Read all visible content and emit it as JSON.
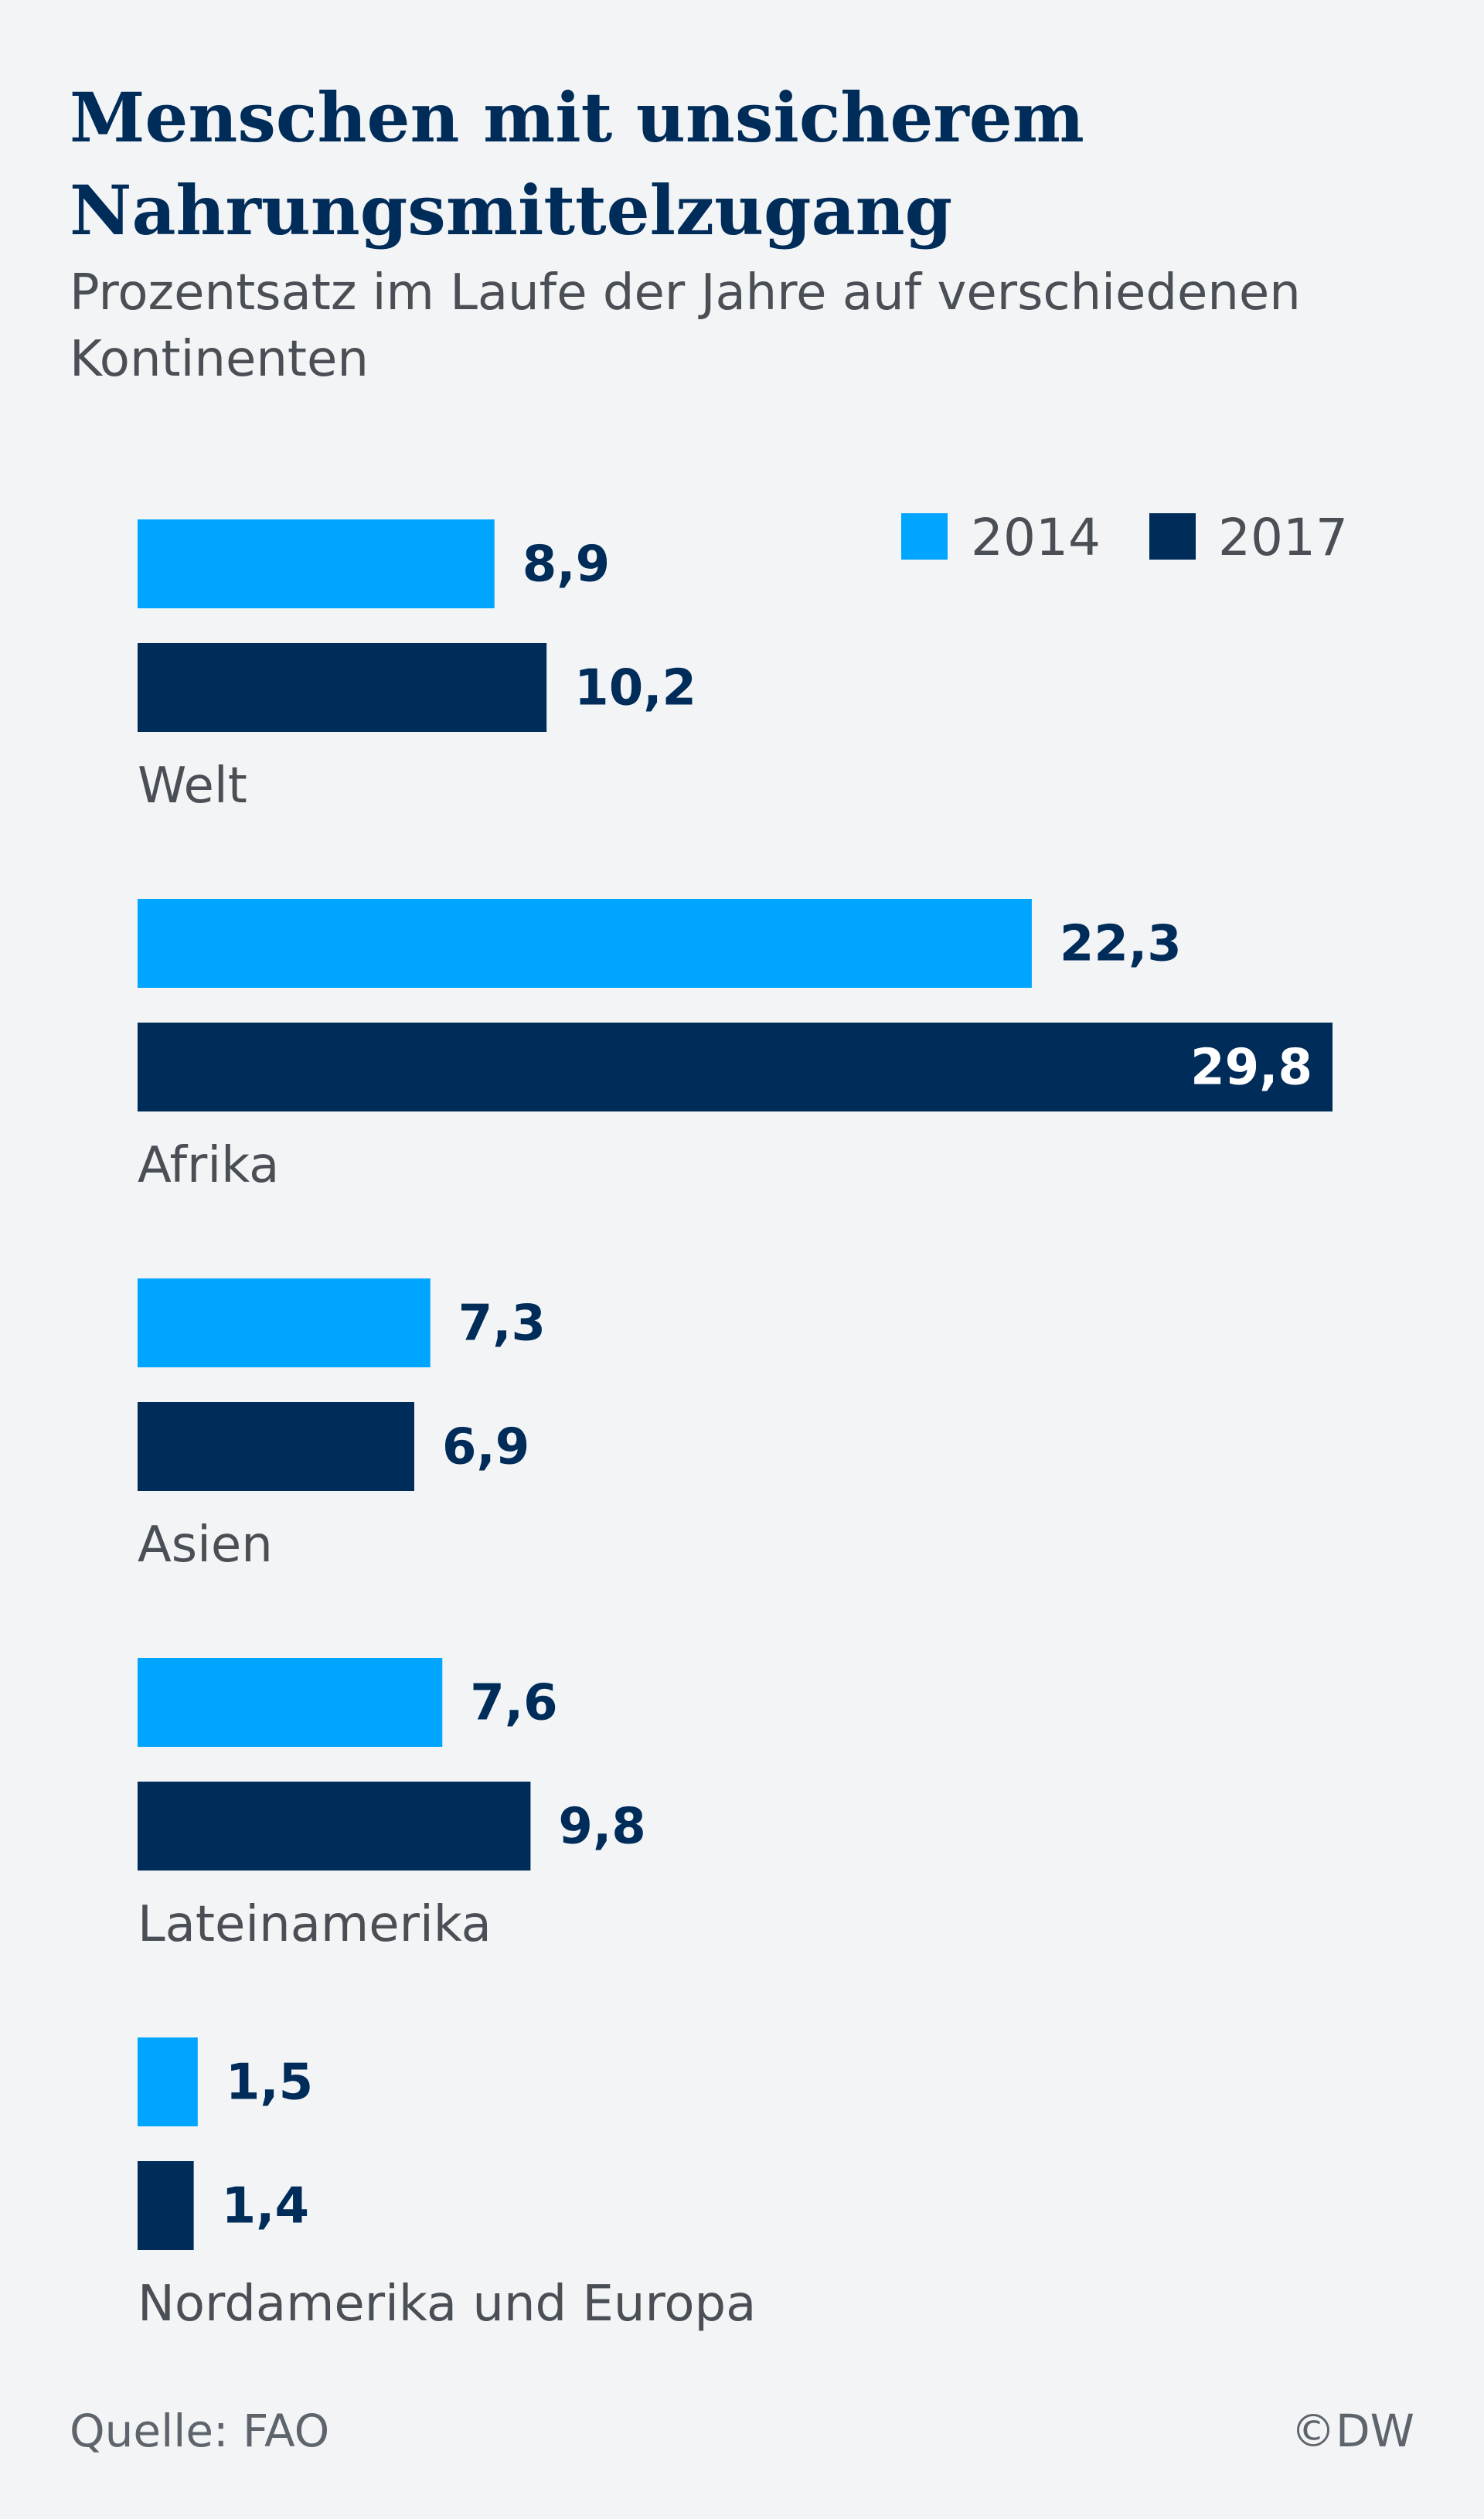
{
  "title": "Menschen mit unsicherem Nahrungsmittelzugang",
  "subtitle": "Prozentsatz im Laufe der Jahre auf verschiedenen Kontinenten",
  "source": "Quelle: FAO",
  "copyright": "©DW",
  "colors": {
    "2014": "#00a5ff",
    "2017": "#002c5a",
    "label_dark": "#002c5a",
    "label_light": "#ffffff",
    "category_text": "#4a4f55"
  },
  "chart_data": {
    "type": "bar",
    "orientation": "horizontal",
    "categories": [
      "Welt",
      "Afrika",
      "Asien",
      "Lateinamerika",
      "Nordamerika und Europa"
    ],
    "series": [
      {
        "name": "2014",
        "values": [
          8.9,
          22.3,
          7.3,
          7.6,
          1.5
        ],
        "labels": [
          "8,9",
          "22,3",
          "7,3",
          "7,6",
          "1,5"
        ]
      },
      {
        "name": "2017",
        "values": [
          10.2,
          29.8,
          6.9,
          9.8,
          1.4
        ],
        "labels": [
          "10,2",
          "29,8",
          "6,9",
          "9,8",
          "1,4"
        ]
      }
    ],
    "legend": {
      "position": "top-right",
      "entries": [
        "2014",
        "2017"
      ]
    },
    "grid": false,
    "xlim": [
      0,
      29.8
    ]
  }
}
